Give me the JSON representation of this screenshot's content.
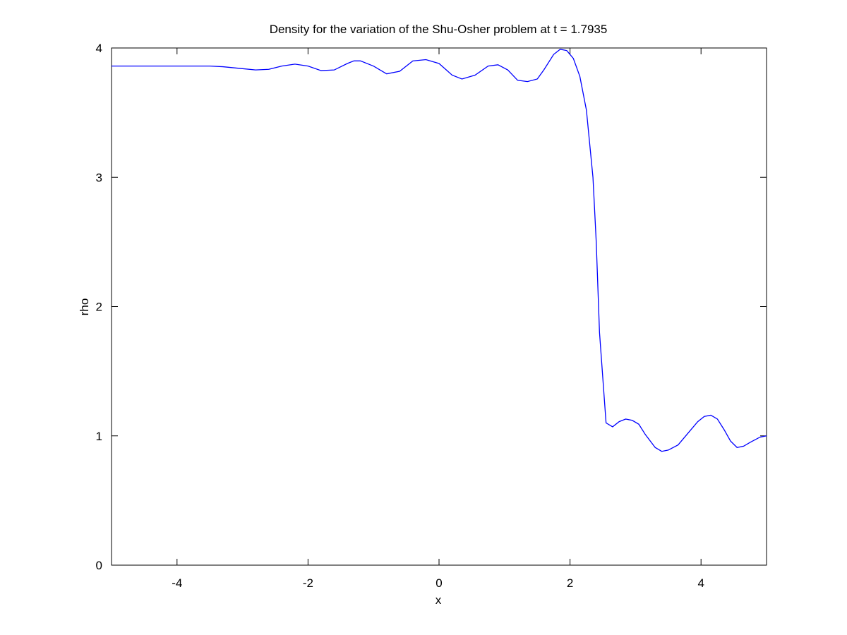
{
  "chart_data": {
    "type": "line",
    "title": "Density for the variation of the Shu-Osher problem at t = 1.7935",
    "xlabel": "x",
    "ylabel": "rho",
    "xlim": [
      -5,
      5
    ],
    "ylim": [
      0,
      4
    ],
    "x_ticks": [
      -4,
      -2,
      0,
      2,
      4
    ],
    "y_ticks": [
      0,
      1,
      2,
      3,
      4
    ],
    "grid": false,
    "legend": "none",
    "series": [
      {
        "color": "#0000ff",
        "x": [
          -5.0,
          -4.5,
          -4.0,
          -3.5,
          -3.3,
          -3.0,
          -2.8,
          -2.6,
          -2.4,
          -2.2,
          -2.0,
          -1.8,
          -1.6,
          -1.4,
          -1.3,
          -1.2,
          -1.0,
          -0.8,
          -0.6,
          -0.4,
          -0.2,
          0.0,
          0.2,
          0.35,
          0.55,
          0.75,
          0.9,
          1.05,
          1.2,
          1.35,
          1.5,
          1.6,
          1.75,
          1.85,
          1.95,
          2.05,
          2.15,
          2.25,
          2.35,
          2.4,
          2.45,
          2.55,
          2.65,
          2.75,
          2.85,
          2.95,
          3.05,
          3.15,
          3.3,
          3.4,
          3.5,
          3.65,
          3.8,
          3.95,
          4.05,
          4.15,
          4.25,
          4.35,
          4.45,
          4.55,
          4.65,
          4.75,
          4.9,
          5.0
        ],
        "y": [
          3.86,
          3.86,
          3.86,
          3.86,
          3.855,
          3.84,
          3.83,
          3.835,
          3.86,
          3.875,
          3.86,
          3.825,
          3.83,
          3.88,
          3.9,
          3.9,
          3.86,
          3.8,
          3.82,
          3.9,
          3.91,
          3.88,
          3.79,
          3.76,
          3.79,
          3.86,
          3.87,
          3.83,
          3.75,
          3.74,
          3.76,
          3.83,
          3.95,
          3.99,
          3.98,
          3.92,
          3.78,
          3.52,
          3.0,
          2.5,
          1.8,
          1.1,
          1.07,
          1.11,
          1.13,
          1.12,
          1.09,
          1.01,
          0.91,
          0.88,
          0.89,
          0.93,
          1.02,
          1.11,
          1.15,
          1.16,
          1.13,
          1.05,
          0.96,
          0.91,
          0.92,
          0.95,
          0.99,
          1.0
        ]
      }
    ]
  }
}
